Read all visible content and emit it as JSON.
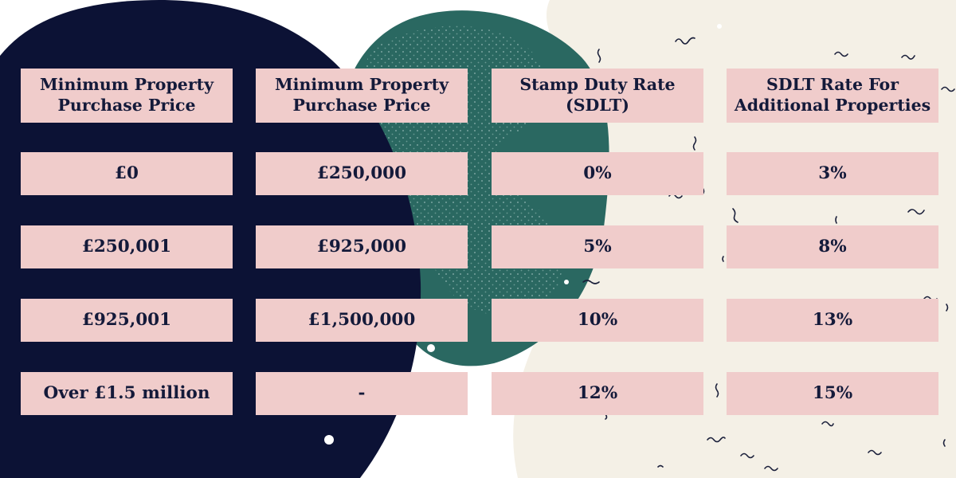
{
  "table": {
    "headers": [
      "Minimum Property Purchase Price",
      "Minimum Property Purchase Price",
      "Stamp Duty Rate (SDLT)",
      "SDLT Rate For Additional Properties"
    ],
    "rows": [
      [
        "£0",
        "£250,000",
        "0%",
        "3%"
      ],
      [
        "£250,001",
        "£925,000",
        "5%",
        "8%"
      ],
      [
        "£925,001",
        "£1,500,000",
        "10%",
        "13%"
      ],
      [
        "Over £1.5 million",
        "-",
        "12%",
        "15%"
      ]
    ]
  },
  "colors": {
    "navy_blob": "#0c1235",
    "green_blob": "#2a6861",
    "cream_blob": "#f4f0e6",
    "cell_fill": "#f0cccb",
    "text": "#141a3a",
    "squiggle": "#1a1f3a"
  }
}
